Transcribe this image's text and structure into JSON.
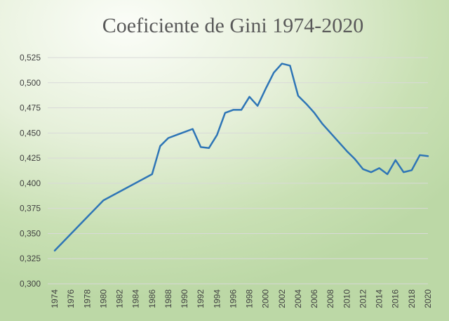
{
  "chart_data": {
    "type": "line",
    "title": "Coeficiente de Gini 1974-2020",
    "ylim": [
      0.3,
      0.525
    ],
    "yticks": [
      "0,300",
      "0,325",
      "0,350",
      "0,375",
      "0,400",
      "0,425",
      "0,450",
      "0,475",
      "0,500",
      "0,525"
    ],
    "xlim": [
      1974,
      2020
    ],
    "xticks": [
      "1974",
      "1976",
      "1978",
      "1980",
      "1982",
      "1984",
      "1986",
      "1988",
      "1990",
      "1992",
      "1994",
      "1996",
      "1998",
      "2000",
      "2002",
      "2004",
      "2006",
      "2008",
      "2010",
      "2012",
      "2014",
      "2016",
      "2018",
      "2020"
    ],
    "grid": true,
    "color": "#2e75b6",
    "series": [
      {
        "x": [
          1974,
          1980,
          1986,
          1987,
          1988,
          1991,
          1992,
          1993,
          1994,
          1995,
          1996,
          1997,
          1998,
          1999,
          2000,
          2001,
          2002,
          2003,
          2004,
          2005,
          2006,
          2007,
          2008,
          2009,
          2010,
          2011,
          2012,
          2013,
          2014,
          2015,
          2016,
          2017,
          2018,
          2019,
          2020
        ],
        "y": [
          0.333,
          0.383,
          0.409,
          0.437,
          0.445,
          0.454,
          0.436,
          0.435,
          0.448,
          0.47,
          0.473,
          0.473,
          0.486,
          0.477,
          0.494,
          0.51,
          0.519,
          0.517,
          0.487,
          0.479,
          0.47,
          0.459,
          0.45,
          0.441,
          0.432,
          0.424,
          0.414,
          0.411,
          0.415,
          0.409,
          0.423,
          0.411,
          0.413,
          0.428,
          0.427
        ]
      }
    ]
  }
}
